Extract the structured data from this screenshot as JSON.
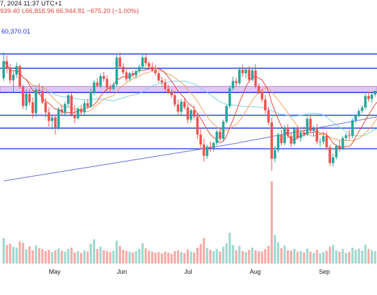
{
  "header": {
    "date_fragment": "7, 2024 11:37 UTC+1",
    "values": [
      "939.40",
      "L66,818.96",
      "66,944.81",
      "−675.20 (−1.00%)"
    ]
  },
  "chart_data": {
    "type": "candlestick",
    "ma_label": "60,370.01",
    "months": [
      "May",
      "Jun",
      "Jul",
      "Aug",
      "Sep"
    ],
    "colors": {
      "up": "#26a69a",
      "down": "#ef5350",
      "level_line": "#2d4fd8",
      "zone_fill": "#e1c8ef",
      "zone_border": "#b06dd4",
      "ma_fast": "#e0463c",
      "ma_mid": "#f2a257",
      "ma_slow": "#77d4e6",
      "ma_long": "#6b6cd6",
      "vol_up": "#9fd8cf",
      "vol_down": "#f5aba6"
    },
    "y_range": [
      52000,
      73600
    ],
    "levels": [
      71600,
      69600,
      66200,
      63000,
      61200,
      58300
    ],
    "zone": [
      66150,
      67050
    ],
    "ohlc": [
      [
        68200,
        71800,
        67800,
        70600
      ],
      [
        70600,
        71400,
        68900,
        69600
      ],
      [
        69600,
        70200,
        67400,
        67900
      ],
      [
        67900,
        69100,
        66100,
        68700
      ],
      [
        68700,
        70400,
        68200,
        69900
      ],
      [
        69900,
        70100,
        66700,
        67000
      ],
      [
        67000,
        67300,
        63900,
        64300
      ],
      [
        64300,
        66600,
        63700,
        66000
      ],
      [
        66000,
        66700,
        64400,
        64800
      ],
      [
        64800,
        65500,
        62600,
        63300
      ],
      [
        63300,
        66900,
        62800,
        66600
      ],
      [
        66600,
        67500,
        65900,
        66400
      ],
      [
        66400,
        67100,
        64600,
        64800
      ],
      [
        64800,
        65400,
        62700,
        63400
      ],
      [
        63400,
        64100,
        61400,
        62200
      ],
      [
        62200,
        62900,
        61000,
        62700
      ],
      [
        62700,
        63100,
        60300,
        61300
      ],
      [
        61300,
        64100,
        60900,
        63800
      ],
      [
        63800,
        64500,
        62900,
        63400
      ],
      [
        63400,
        64900,
        62800,
        64600
      ],
      [
        64600,
        66000,
        64100,
        65800
      ],
      [
        65800,
        66400,
        62800,
        63100
      ],
      [
        63100,
        64400,
        61900,
        62600
      ],
      [
        62600,
        64200,
        62400,
        63900
      ],
      [
        63900,
        64500,
        63100,
        63400
      ],
      [
        63400,
        65100,
        63000,
        64700
      ],
      [
        64700,
        65300,
        63900,
        64200
      ],
      [
        64200,
        66700,
        64000,
        66300
      ],
      [
        66300,
        67900,
        65800,
        67600
      ],
      [
        67600,
        68200,
        66900,
        67100
      ],
      [
        67100,
        68900,
        66800,
        68500
      ],
      [
        68500,
        69100,
        67700,
        68100
      ],
      [
        68100,
        68600,
        66400,
        66900
      ],
      [
        66900,
        67400,
        66100,
        66700
      ],
      [
        66700,
        67600,
        66500,
        67300
      ],
      [
        67300,
        71700,
        67100,
        71100
      ],
      [
        71100,
        71800,
        69500,
        69800
      ],
      [
        69800,
        70300,
        68700,
        69000
      ],
      [
        69000,
        69500,
        67700,
        68100
      ],
      [
        68100,
        69100,
        67800,
        68900
      ],
      [
        68900,
        69300,
        68300,
        68600
      ],
      [
        68600,
        69400,
        68100,
        69200
      ],
      [
        69200,
        70100,
        68900,
        69800
      ],
      [
        69800,
        71700,
        69600,
        71100
      ],
      [
        71100,
        71600,
        69900,
        70300
      ],
      [
        70300,
        70600,
        69500,
        69800
      ],
      [
        69800,
        70400,
        69100,
        69300
      ],
      [
        69300,
        70100,
        68600,
        68900
      ],
      [
        68900,
        69200,
        67600,
        67900
      ],
      [
        67900,
        68400,
        67100,
        67600
      ],
      [
        67600,
        68100,
        66300,
        66700
      ],
      [
        66700,
        67300,
        66000,
        66200
      ],
      [
        66200,
        66700,
        65400,
        65800
      ],
      [
        65800,
        66400,
        64200,
        64500
      ],
      [
        64500,
        65200,
        63100,
        63500
      ],
      [
        63500,
        65300,
        63100,
        64900
      ],
      [
        64900,
        65500,
        63800,
        64100
      ],
      [
        64100,
        64600,
        61900,
        62400
      ],
      [
        62400,
        63900,
        62000,
        63700
      ],
      [
        63700,
        64400,
        62400,
        62800
      ],
      [
        62800,
        63300,
        59700,
        60300
      ],
      [
        60300,
        61200,
        58400,
        58900
      ],
      [
        58900,
        59700,
        56500,
        57300
      ],
      [
        57300,
        58900,
        56900,
        58600
      ],
      [
        58600,
        59300,
        57900,
        58400
      ],
      [
        58400,
        59300,
        57900,
        59100
      ],
      [
        59100,
        61000,
        58800,
        60700
      ],
      [
        60700,
        61200,
        59400,
        59700
      ],
      [
        59700,
        62400,
        59400,
        62100
      ],
      [
        62100,
        64500,
        61800,
        64300
      ],
      [
        64300,
        67200,
        64000,
        66800
      ],
      [
        66800,
        68400,
        66500,
        67800
      ],
      [
        67800,
        68300,
        67000,
        67500
      ],
      [
        67500,
        69800,
        67200,
        69400
      ],
      [
        69400,
        70100,
        68400,
        68900
      ],
      [
        68900,
        69600,
        68200,
        69400
      ],
      [
        69400,
        69900,
        67600,
        68000
      ],
      [
        68000,
        69700,
        67700,
        69300
      ],
      [
        69300,
        70100,
        66800,
        67100
      ],
      [
        67100,
        67500,
        65900,
        66300
      ],
      [
        66300,
        66700,
        64800,
        65200
      ],
      [
        65200,
        65800,
        63200,
        63700
      ],
      [
        63700,
        64200,
        61600,
        62000
      ],
      [
        62000,
        62700,
        55200,
        56900
      ],
      [
        56900,
        58700,
        56400,
        58100
      ],
      [
        58100,
        60600,
        57800,
        60300
      ],
      [
        60300,
        61000,
        58700,
        59100
      ],
      [
        59100,
        61600,
        58800,
        61300
      ],
      [
        61300,
        61800,
        59800,
        60100
      ],
      [
        60100,
        60600,
        58500,
        59000
      ],
      [
        59000,
        61400,
        58800,
        61100
      ],
      [
        61100,
        61500,
        59600,
        59800
      ],
      [
        59800,
        60900,
        59300,
        60600
      ],
      [
        60600,
        61400,
        60000,
        60300
      ],
      [
        60300,
        62800,
        60100,
        62500
      ],
      [
        62500,
        63000,
        60500,
        60800
      ],
      [
        60800,
        61500,
        60000,
        61100
      ],
      [
        61100,
        61800,
        58900,
        59300
      ],
      [
        59300,
        59800,
        58600,
        59300
      ],
      [
        59300,
        60600,
        58900,
        60100
      ],
      [
        60100,
        60700,
        58100,
        58500
      ],
      [
        58500,
        58900,
        55900,
        56300
      ],
      [
        56300,
        57600,
        55800,
        57100
      ],
      [
        57100,
        58900,
        56800,
        58700
      ],
      [
        58700,
        59500,
        57900,
        58300
      ],
      [
        58300,
        60100,
        58100,
        59800
      ],
      [
        59800,
        60500,
        59400,
        60200
      ],
      [
        60200,
        61000,
        59600,
        60100
      ],
      [
        60100,
        62600,
        59800,
        62300
      ],
      [
        62300,
        63100,
        61900,
        63000
      ],
      [
        63000,
        63900,
        62700,
        63600
      ],
      [
        63600,
        64400,
        63300,
        64100
      ],
      [
        64100,
        66000,
        63800,
        65700
      ],
      [
        65700,
        66300,
        64900,
        65300
      ],
      [
        65300,
        66100,
        64700,
        65900
      ],
      [
        65900,
        66500,
        65600,
        66400
      ],
      [
        66400,
        66900,
        65700,
        66000
      ],
      [
        66000,
        67000,
        65800,
        66800
      ]
    ],
    "volume": [
      58,
      42,
      45,
      38,
      36,
      50,
      47,
      32,
      39,
      30,
      41,
      35,
      33,
      28,
      31,
      26,
      30,
      34,
      29,
      27,
      33,
      36,
      25,
      28,
      24,
      30,
      27,
      45,
      55,
      33,
      38,
      30,
      28,
      26,
      29,
      52,
      40,
      31,
      29,
      27,
      25,
      28,
      33,
      46,
      35,
      29,
      27,
      24,
      26,
      23,
      27,
      25,
      22,
      28,
      30,
      26,
      24,
      32,
      27,
      25,
      36,
      44,
      58,
      35,
      31,
      28,
      33,
      27,
      38,
      46,
      70,
      42,
      30,
      40,
      28,
      26,
      31,
      36,
      30,
      28,
      27,
      33,
      40,
      210,
      65,
      48,
      35,
      41,
      30,
      29,
      33,
      27,
      28,
      25,
      34,
      27,
      24,
      31,
      23,
      26,
      29,
      38,
      42,
      30,
      27,
      33,
      24,
      26,
      36,
      31,
      34,
      29,
      43,
      33,
      30,
      28,
      27,
      35
    ]
  }
}
